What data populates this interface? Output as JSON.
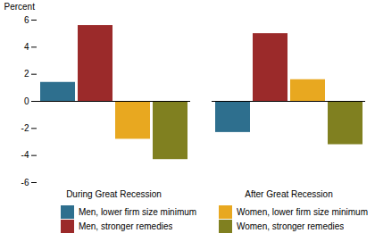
{
  "chart_data": {
    "type": "bar",
    "categories": [
      "During Great Recession",
      "After Great Recession"
    ],
    "series": [
      {
        "name": "Men, lower firm size minimum",
        "color": "#2e6f8e",
        "values": [
          1.4,
          -2.3
        ]
      },
      {
        "name": "Men, stronger remedies",
        "color": "#9b2a2a",
        "values": [
          5.6,
          5.0
        ]
      },
      {
        "name": "Women, lower firm size minimum",
        "color": "#e8a820",
        "values": [
          -2.8,
          1.6
        ]
      },
      {
        "name": "Women, stronger remedies",
        "color": "#808020",
        "values": [
          -4.3,
          -3.2
        ]
      }
    ],
    "ylabel": "Percent",
    "ylim": [
      -6,
      6
    ],
    "yticks": [
      -6,
      -4,
      -2,
      0,
      2,
      4,
      6
    ],
    "grid": false,
    "legend": "lower right"
  }
}
